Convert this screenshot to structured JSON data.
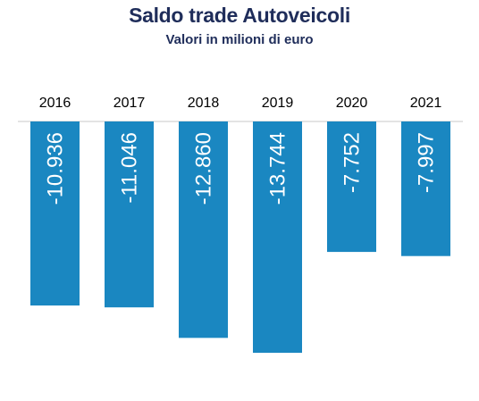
{
  "colors": {
    "title": "#1f2d5a",
    "bar": "#1a87c1",
    "bar_label": "#ffffff",
    "axis_line": "#c8c8c8",
    "category_text": "#000000"
  },
  "chart_data": {
    "type": "bar",
    "title": "Saldo trade Autoveicoli",
    "subtitle": "Valori in milioni di euro",
    "categories": [
      "2016",
      "2017",
      "2018",
      "2019",
      "2020",
      "2021"
    ],
    "values": [
      -10936,
      -11046,
      -12860,
      -13744,
      -7752,
      -7997
    ],
    "value_labels": [
      "-10.936",
      "-11.046",
      "-12.860",
      "-13.744",
      "-7.752",
      "-7.997"
    ],
    "xlabel": "",
    "ylabel": "",
    "ylim": [
      -14000,
      0
    ],
    "grid": false,
    "legend": "none",
    "category_axis_position": "top",
    "value_label_orientation": "vertical"
  }
}
